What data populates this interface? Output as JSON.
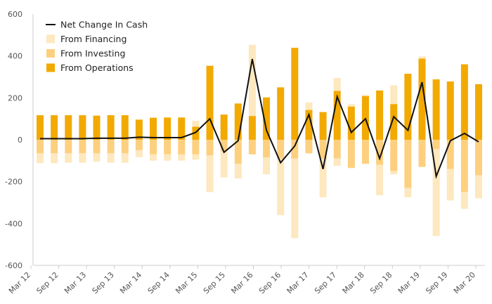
{
  "chart_data": {
    "type": "bar",
    "subtype": "stacked-bar-with-line",
    "ylim": [
      -600,
      600
    ],
    "y_ticks": [
      600,
      400,
      200,
      0,
      -200,
      -400,
      -600
    ],
    "x_tick_labels": [
      "Mar 12",
      "Sep 12",
      "Mar 13",
      "Sep 13",
      "Mar 14",
      "Sep 14",
      "Mar 15",
      "Sep 15",
      "Mar 16",
      "Sep 16",
      "Mar 17",
      "Sep 17",
      "Mar 18",
      "Sep 18",
      "Mar 19",
      "Sep 19",
      "Mar 20"
    ],
    "legend": {
      "placement": "top-left",
      "items": [
        {
          "label": "Net Change In Cash",
          "type": "line",
          "color": "#111111"
        },
        {
          "label": "From Financing",
          "type": "bar",
          "color": "#fde8bf"
        },
        {
          "label": "From Investing",
          "type": "bar",
          "color": "#fdd07f"
        },
        {
          "label": "From Operations",
          "type": "bar",
          "color": "#f2a900"
        }
      ]
    },
    "series": [
      {
        "name": "From Operations",
        "color": "#f2a900",
        "values": [
          117,
          117,
          117,
          117,
          115,
          117,
          117,
          96,
          105,
          106,
          106,
          62,
          353,
          120,
          173,
          113,
          202,
          250,
          439,
          142,
          132,
          233,
          158,
          208,
          235,
          170,
          315,
          387,
          288,
          278,
          360,
          265
        ]
      },
      {
        "name": "From Investing",
        "color": "#fdd07f",
        "values": [
          -65,
          -65,
          -65,
          -65,
          -65,
          -65,
          -65,
          -50,
          -70,
          -70,
          -70,
          -70,
          -75,
          -55,
          -115,
          -70,
          -85,
          -90,
          -90,
          -65,
          -90,
          -90,
          -135,
          -115,
          -120,
          -150,
          -230,
          -130,
          -45,
          -140,
          -250,
          -170
        ]
      },
      {
        "name": "From Financing",
        "color": "#fde8bf",
        "values": [
          -47,
          -47,
          -45,
          -45,
          -40,
          -45,
          -45,
          -33,
          -30,
          -30,
          -30,
          -25,
          -175,
          -125,
          -70,
          0,
          -80,
          -270,
          -380,
          0,
          -185,
          -35,
          0,
          0,
          -145,
          -15,
          -45,
          0,
          -415,
          -150,
          -80,
          -110
        ]
      },
      {
        "name": "Net Change In Cash",
        "color": "#111111",
        "values": [
          5,
          5,
          5,
          5,
          7,
          7,
          7,
          12,
          10,
          10,
          10,
          35,
          100,
          -60,
          -5,
          385,
          45,
          -110,
          -30,
          120,
          -140,
          205,
          35,
          100,
          -90,
          110,
          45,
          275,
          -175,
          -5,
          30,
          -10
        ]
      }
    ],
    "financing_positive_tops": [
      0,
      0,
      0,
      0,
      0,
      0,
      0,
      0,
      0,
      0,
      0,
      90,
      0,
      0,
      0,
      453,
      0,
      0,
      0,
      178,
      0,
      295,
      170,
      215,
      0,
      260,
      0,
      398,
      0,
      0,
      0,
      0
    ]
  }
}
